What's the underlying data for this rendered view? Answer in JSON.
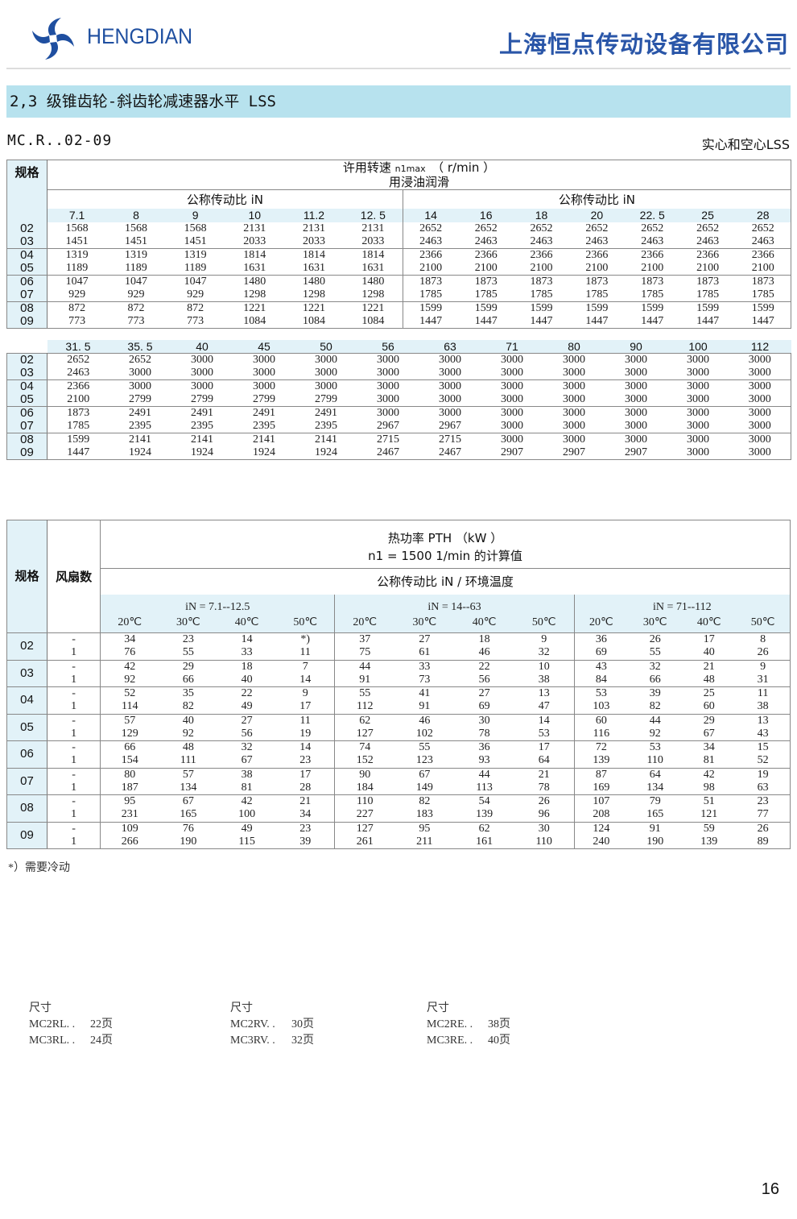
{
  "header": {
    "logo_text": "HENGDIAN",
    "company": "上海恒点传动设备有限公司",
    "brand_color": "#1f4fa0"
  },
  "section_title": "2,3 级锥齿轮-斜齿轮减速器水平 LSS",
  "model": "MC.R..02-09",
  "type_label": "实心和空心LSS",
  "speed_table": {
    "size_label": "规格",
    "title_line1": "许用转速 ",
    "title_sym": "n1max",
    "title_unit": "（ r/min ）",
    "title_line2": "用浸油润滑",
    "ratio_label": "公称传动比 iN",
    "sizes": [
      "02",
      "03",
      "04",
      "05",
      "06",
      "07",
      "08",
      "09"
    ],
    "part1_ratios": [
      "7.1",
      "8",
      "9",
      "10",
      "11.2",
      "12. 5",
      "14",
      "16",
      "18",
      "20",
      "22. 5",
      "25",
      "28"
    ],
    "part1_rows": [
      [
        "1568",
        "1568",
        "1568",
        "2131",
        "2131",
        "2131",
        "2652",
        "2652",
        "2652",
        "2652",
        "2652",
        "2652",
        "2652"
      ],
      [
        "1451",
        "1451",
        "1451",
        "2033",
        "2033",
        "2033",
        "2463",
        "2463",
        "2463",
        "2463",
        "2463",
        "2463",
        "2463"
      ],
      [
        "1319",
        "1319",
        "1319",
        "1814",
        "1814",
        "1814",
        "2366",
        "2366",
        "2366",
        "2366",
        "2366",
        "2366",
        "2366"
      ],
      [
        "1189",
        "1189",
        "1189",
        "1631",
        "1631",
        "1631",
        "2100",
        "2100",
        "2100",
        "2100",
        "2100",
        "2100",
        "2100"
      ],
      [
        "1047",
        "1047",
        "1047",
        "1480",
        "1480",
        "1480",
        "1873",
        "1873",
        "1873",
        "1873",
        "1873",
        "1873",
        "1873"
      ],
      [
        "929",
        "929",
        "929",
        "1298",
        "1298",
        "1298",
        "1785",
        "1785",
        "1785",
        "1785",
        "1785",
        "1785",
        "1785"
      ],
      [
        "872",
        "872",
        "872",
        "1221",
        "1221",
        "1221",
        "1599",
        "1599",
        "1599",
        "1599",
        "1599",
        "1599",
        "1599"
      ],
      [
        "773",
        "773",
        "773",
        "1084",
        "1084",
        "1084",
        "1447",
        "1447",
        "1447",
        "1447",
        "1447",
        "1447",
        "1447"
      ]
    ],
    "part2_ratios": [
      "31. 5",
      "35. 5",
      "40",
      "45",
      "50",
      "56",
      "63",
      "71",
      "80",
      "90",
      "100",
      "112"
    ],
    "part2_rows": [
      [
        "2652",
        "2652",
        "3000",
        "3000",
        "3000",
        "3000",
        "3000",
        "3000",
        "3000",
        "3000",
        "3000",
        "3000"
      ],
      [
        "2463",
        "3000",
        "3000",
        "3000",
        "3000",
        "3000",
        "3000",
        "3000",
        "3000",
        "3000",
        "3000",
        "3000"
      ],
      [
        "2366",
        "3000",
        "3000",
        "3000",
        "3000",
        "3000",
        "3000",
        "3000",
        "3000",
        "3000",
        "3000",
        "3000"
      ],
      [
        "2100",
        "2799",
        "2799",
        "2799",
        "2799",
        "3000",
        "3000",
        "3000",
        "3000",
        "3000",
        "3000",
        "3000"
      ],
      [
        "1873",
        "2491",
        "2491",
        "2491",
        "2491",
        "3000",
        "3000",
        "3000",
        "3000",
        "3000",
        "3000",
        "3000"
      ],
      [
        "1785",
        "2395",
        "2395",
        "2395",
        "2395",
        "2967",
        "2967",
        "3000",
        "3000",
        "3000",
        "3000",
        "3000"
      ],
      [
        "1599",
        "2141",
        "2141",
        "2141",
        "2141",
        "2715",
        "2715",
        "3000",
        "3000",
        "3000",
        "3000",
        "3000"
      ],
      [
        "1447",
        "1924",
        "1924",
        "1924",
        "1924",
        "2467",
        "2467",
        "2907",
        "2907",
        "2907",
        "3000",
        "3000"
      ]
    ]
  },
  "thermal_table": {
    "size_label": "规格",
    "fan_label": "风扇数",
    "title_line1": "热功率 PTH （kW ）",
    "title_line2": "n1  = 1500 1/min 的计算值",
    "subtitle": "公称传动比 iN / 环境温度",
    "groups": [
      "iN = 7.1--12.5",
      "iN = 14--63",
      "iN = 71--112"
    ],
    "temps": [
      "20℃",
      "30℃",
      "40℃",
      "50℃"
    ],
    "sizes": [
      "02",
      "03",
      "04",
      "05",
      "06",
      "07",
      "08",
      "09"
    ],
    "fans": [
      "-",
      "1"
    ],
    "rows": [
      [
        [
          "34",
          "23",
          "14",
          "*)",
          "37",
          "27",
          "18",
          "9",
          "36",
          "26",
          "17",
          "8"
        ],
        [
          "76",
          "55",
          "33",
          "11",
          "75",
          "61",
          "46",
          "32",
          "69",
          "55",
          "40",
          "26"
        ]
      ],
      [
        [
          "42",
          "29",
          "18",
          "7",
          "44",
          "33",
          "22",
          "10",
          "43",
          "32",
          "21",
          "9"
        ],
        [
          "92",
          "66",
          "40",
          "14",
          "91",
          "73",
          "56",
          "38",
          "84",
          "66",
          "48",
          "31"
        ]
      ],
      [
        [
          "52",
          "35",
          "22",
          "9",
          "55",
          "41",
          "27",
          "13",
          "53",
          "39",
          "25",
          "11"
        ],
        [
          "114",
          "82",
          "49",
          "17",
          "112",
          "91",
          "69",
          "47",
          "103",
          "82",
          "60",
          "38"
        ]
      ],
      [
        [
          "57",
          "40",
          "27",
          "11",
          "62",
          "46",
          "30",
          "14",
          "60",
          "44",
          "29",
          "13"
        ],
        [
          "129",
          "92",
          "56",
          "19",
          "127",
          "102",
          "78",
          "53",
          "116",
          "92",
          "67",
          "43"
        ]
      ],
      [
        [
          "66",
          "48",
          "32",
          "14",
          "74",
          "55",
          "36",
          "17",
          "72",
          "53",
          "34",
          "15"
        ],
        [
          "154",
          "111",
          "67",
          "23",
          "152",
          "123",
          "93",
          "64",
          "139",
          "110",
          "81",
          "52"
        ]
      ],
      [
        [
          "80",
          "57",
          "38",
          "17",
          "90",
          "67",
          "44",
          "21",
          "87",
          "64",
          "42",
          "19"
        ],
        [
          "187",
          "134",
          "81",
          "28",
          "184",
          "149",
          "113",
          "78",
          "169",
          "134",
          "98",
          "63"
        ]
      ],
      [
        [
          "95",
          "67",
          "42",
          "21",
          "110",
          "82",
          "54",
          "26",
          "107",
          "79",
          "51",
          "23"
        ],
        [
          "231",
          "165",
          "100",
          "34",
          "227",
          "183",
          "139",
          "96",
          "208",
          "165",
          "121",
          "77"
        ]
      ],
      [
        [
          "109",
          "76",
          "49",
          "23",
          "127",
          "95",
          "62",
          "30",
          "124",
          "91",
          "59",
          "26"
        ],
        [
          "266",
          "190",
          "115",
          "39",
          "261",
          "211",
          "161",
          "110",
          "240",
          "190",
          "139",
          "89"
        ]
      ]
    ]
  },
  "footnote": "*）需要冷动",
  "dimension_refs": [
    {
      "label": "尺寸",
      "lines": [
        [
          "MC2RL. .",
          "22页"
        ],
        [
          "MC3RL. .",
          "24页"
        ]
      ]
    },
    {
      "label": "尺寸",
      "lines": [
        [
          "MC2RV. .",
          "30页"
        ],
        [
          "MC3RV. .",
          "32页"
        ]
      ]
    },
    {
      "label": "尺寸",
      "lines": [
        [
          "MC2RE. .",
          "38页"
        ],
        [
          "MC3RE. .",
          "40页"
        ]
      ]
    }
  ],
  "page_number": "16"
}
